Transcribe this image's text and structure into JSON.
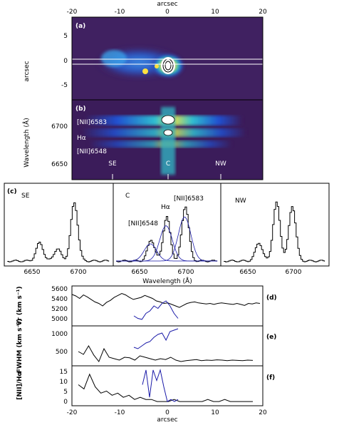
{
  "figure": {
    "top_axis_label": "arcsec",
    "top_ticks": [
      "-20",
      "-10",
      "0",
      "10",
      "20"
    ],
    "bottom_ticks": [
      "-20",
      "-10",
      "0",
      "10",
      "20"
    ],
    "bottom_axis_label": "arcsec"
  },
  "panel_a": {
    "tag": "(a)",
    "ylabel": "arcsec",
    "yticks": [
      "5",
      "0",
      "-5"
    ]
  },
  "panel_b": {
    "tag": "(b)",
    "ylabel": "Wavelength (Å)",
    "yticks": [
      "6700",
      "6650"
    ],
    "line_labels": [
      "[NII]6583",
      "Hα",
      "[NII]6548"
    ],
    "position_labels": [
      "SE",
      "C",
      "NW"
    ]
  },
  "panel_c": {
    "tag": "(c)",
    "xlabel": "Wavelength (Å)",
    "xticks": [
      "6650",
      "6700"
    ],
    "subpanels": [
      {
        "label": "SE",
        "peaks": [
          {
            "x": 6700,
            "h": 0.95
          },
          {
            "x": 6665,
            "h": 0.3
          },
          {
            "x": 6683,
            "h": 0.2
          }
        ]
      },
      {
        "label": "C",
        "peaks": [
          {
            "x": 6703,
            "h": 0.9
          },
          {
            "x": 6684,
            "h": 0.72
          },
          {
            "x": 6668,
            "h": 0.35
          }
        ],
        "annotations": [
          "[NII]6583",
          "Hα",
          "[NII]6548"
        ]
      },
      {
        "label": "NW",
        "peaks": [
          {
            "x": 6702,
            "h": 0.9
          },
          {
            "x": 6686,
            "h": 0.95
          },
          {
            "x": 6668,
            "h": 0.3
          }
        ]
      }
    ]
  },
  "panel_d": {
    "tag": "(d)",
    "ylabel": "Vr (km s⁻¹)",
    "yticks": [
      "5600",
      "5400",
      "5200",
      "5000"
    ]
  },
  "panel_e": {
    "tag": "(e)",
    "ylabel": "FWHM (km s⁻¹)",
    "yticks": [
      "1000",
      "500"
    ]
  },
  "panel_f": {
    "tag": "(f)",
    "ylabel": "[NII]/Hα",
    "yticks": [
      "15",
      "10",
      "5",
      "0"
    ]
  },
  "colors": {
    "black_curve": "#000000",
    "blue_curve": "#1a1aa8",
    "image_bg": "#3b1c5a"
  },
  "chart_data": [
    {
      "type": "line",
      "series": [
        {
          "values": [
            5480,
            5450,
            5400,
            5470,
            5430,
            5380,
            5330,
            5300,
            5250,
            5320,
            5360,
            5420,
            5460,
            5500,
            5470,
            5420,
            5380,
            5400,
            5420,
            5460,
            5430,
            5400,
            5350,
            5330,
            5300,
            5310,
            5280,
            5250,
            5220,
            5260,
            5300,
            5320,
            5330,
            5310,
            5300,
            5290,
            5300,
            5280,
            5300,
            5310,
            5300,
            5290,
            5280,
            5300,
            5280,
            5260,
            5300,
            5290,
            5310,
            5300
          ]
        },
        {
          "values": [
            5050,
            5000,
            4980,
            5100,
            5150,
            5250,
            5200,
            5300,
            5350,
            5250,
            5100,
            5000
          ]
        }
      ],
      "ylim": [
        4850,
        5650
      ]
    },
    {
      "type": "line",
      "series": [
        {
          "values": [
            500,
            400,
            700,
            380,
            150,
            600,
            300,
            250,
            200,
            300,
            280,
            200,
            350,
            300,
            250,
            200,
            250,
            220,
            300,
            200,
            150,
            180,
            200,
            220,
            180,
            200,
            190,
            210,
            200,
            180,
            200,
            190,
            180,
            200,
            190
          ]
        },
        {
          "values": [
            650,
            600,
            700,
            800,
            850,
            1000,
            1100,
            1150,
            900,
            1200,
            1250,
            1300
          ]
        }
      ],
      "ylim": [
        0,
        1400
      ]
    },
    {
      "type": "line",
      "series": [
        {
          "values": [
            10,
            8,
            15,
            9,
            6,
            7,
            5,
            6,
            4,
            5,
            3,
            4,
            3,
            3,
            2,
            2,
            2,
            3,
            2,
            2,
            2,
            2,
            2,
            3,
            2,
            2,
            3,
            2,
            2,
            2,
            2,
            2
          ]
        },
        {
          "values": [
            10,
            17,
            4,
            17,
            12,
            17,
            9,
            2,
            3,
            2,
            3
          ]
        }
      ],
      "ylim": [
        0,
        19
      ]
    }
  ]
}
